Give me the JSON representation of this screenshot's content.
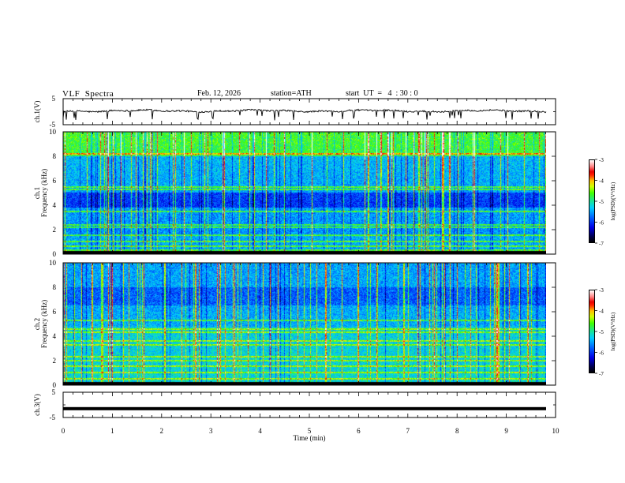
{
  "header": {
    "title": "VLF  Spectra",
    "date": "Feb. 12, 2026",
    "station": "station=ATH",
    "start": "start  UT  =   4  : 30 : 0"
  },
  "colors": {
    "frame": "#000000",
    "trace": "#000000",
    "colormap": [
      "#000000",
      "#000040",
      "#0000e8",
      "#0060ff",
      "#00d0ff",
      "#20e880",
      "#40ff00",
      "#d0ff00",
      "#ffc000",
      "#ff2000",
      "#e80000",
      "#ff8080",
      "#ffffff"
    ]
  },
  "chart_data": [
    {
      "type": "line",
      "panel": "ch1-waveform",
      "ylabel": "ch.1(V)",
      "yticks": [
        "5",
        "-5"
      ],
      "ylim": [
        -5,
        5
      ],
      "xlim": [
        0,
        10
      ],
      "mean_level": 0.3,
      "data_end_min": 9.8
    },
    {
      "type": "heatmap",
      "panel": "ch1-spectrogram",
      "ylabel_top": "ch.1",
      "ylabel": "Frequency  (kHz)",
      "yticks": [
        "0",
        "2",
        "4",
        "6",
        "8",
        "10"
      ],
      "ylim": [
        0,
        10
      ],
      "xlim": [
        0,
        10
      ],
      "data_end_min": 9.8,
      "colorbar_label": "log(PSD)(V²/Hz)",
      "colorbar_ticks": [
        "-3",
        "-4",
        "-5",
        "-6",
        "-7"
      ],
      "colorbar_range": [
        -7,
        -3
      ],
      "line_bands_khz": [
        0.3,
        0.6,
        1.0,
        1.5,
        2.15,
        2.35,
        3.5,
        5.3,
        5.5,
        8.2
      ],
      "dark_band_khz": [
        3.8,
        5.0
      ]
    },
    {
      "type": "heatmap",
      "panel": "ch2-spectrogram",
      "ylabel_top": "ch.2",
      "ylabel": "Frequency  (kHz)",
      "yticks": [
        "0",
        "2",
        "4",
        "6",
        "8",
        "10"
      ],
      "ylim": [
        0,
        10
      ],
      "xlim": [
        0,
        10
      ],
      "data_end_min": 9.8,
      "colorbar_label": "log(PSD)(V²/Hz)",
      "colorbar_ticks": [
        "-3",
        "-4",
        "-5",
        "-6",
        "-7"
      ],
      "colorbar_range": [
        -7,
        -3
      ],
      "line_bands_khz": [
        0.5,
        1.0,
        1.5,
        2.0,
        2.3,
        3.3,
        3.6,
        4.3,
        4.6,
        5.3
      ],
      "dark_band_khz": [
        6.5,
        8.0
      ]
    },
    {
      "type": "line",
      "panel": "ch3-waveform",
      "ylabel": "ch.3(V)",
      "yticks": [
        "5",
        "-5"
      ],
      "ylim": [
        -5,
        5
      ],
      "xlim": [
        0,
        10
      ],
      "mean_level": -1.5,
      "data_end_min": 9.8
    }
  ],
  "xaxis": {
    "label": "Time  (min)",
    "ticks": [
      "0",
      "1",
      "2",
      "3",
      "4",
      "5",
      "6",
      "7",
      "8",
      "9",
      "10"
    ]
  }
}
